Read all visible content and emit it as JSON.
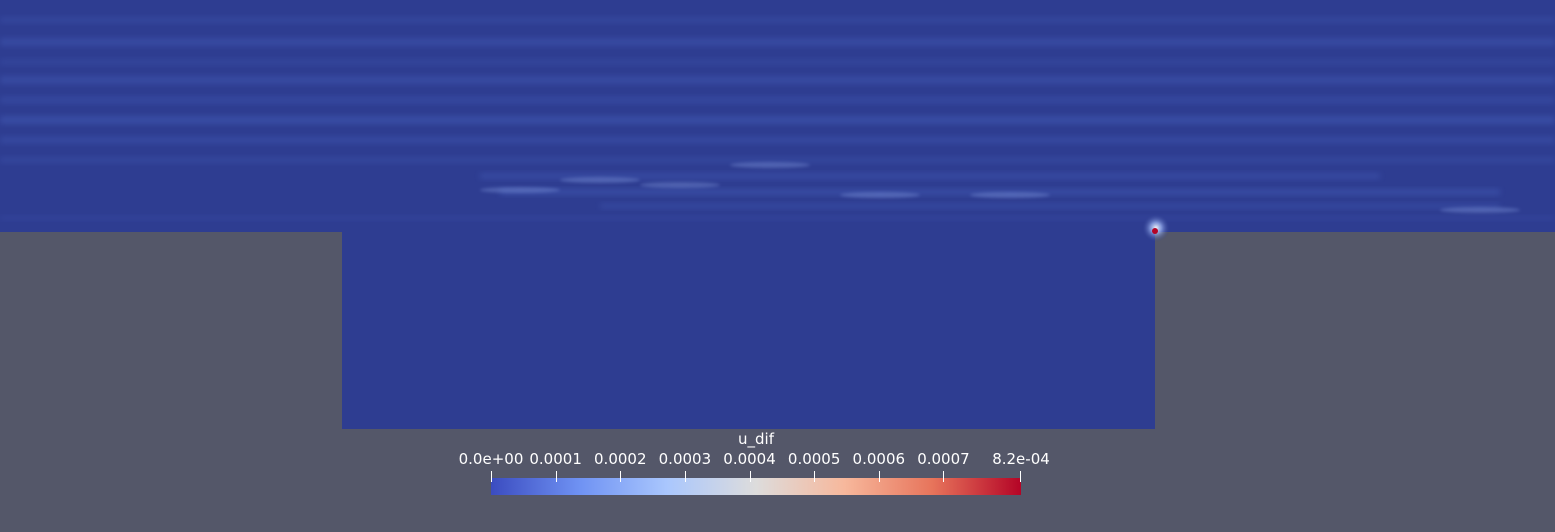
{
  "colorbar": {
    "title": "u_dif",
    "range": [
      0,
      0.00082
    ],
    "ticks": [
      {
        "value": 0,
        "label": "0.0e+00"
      },
      {
        "value": 0.0001,
        "label": "0.0001"
      },
      {
        "value": 0.0002,
        "label": "0.0002"
      },
      {
        "value": 0.0003,
        "label": "0.0003"
      },
      {
        "value": 0.0004,
        "label": "0.0004"
      },
      {
        "value": 0.0005,
        "label": "0.0005"
      },
      {
        "value": 0.0006,
        "label": "0.0006"
      },
      {
        "value": 0.0007,
        "label": "0.0007"
      },
      {
        "value": 0.00082,
        "label": "8.2e-04"
      }
    ],
    "colormap": [
      "#3b4cc0",
      "#6f92f3",
      "#aac7fd",
      "#dddcdc",
      "#f7b89c",
      "#e7745b",
      "#b40426"
    ]
  },
  "colors": {
    "background": "#545769",
    "field_base": "#2e3d91",
    "streak": "#4a64c0",
    "hotspot": "#b40426"
  }
}
